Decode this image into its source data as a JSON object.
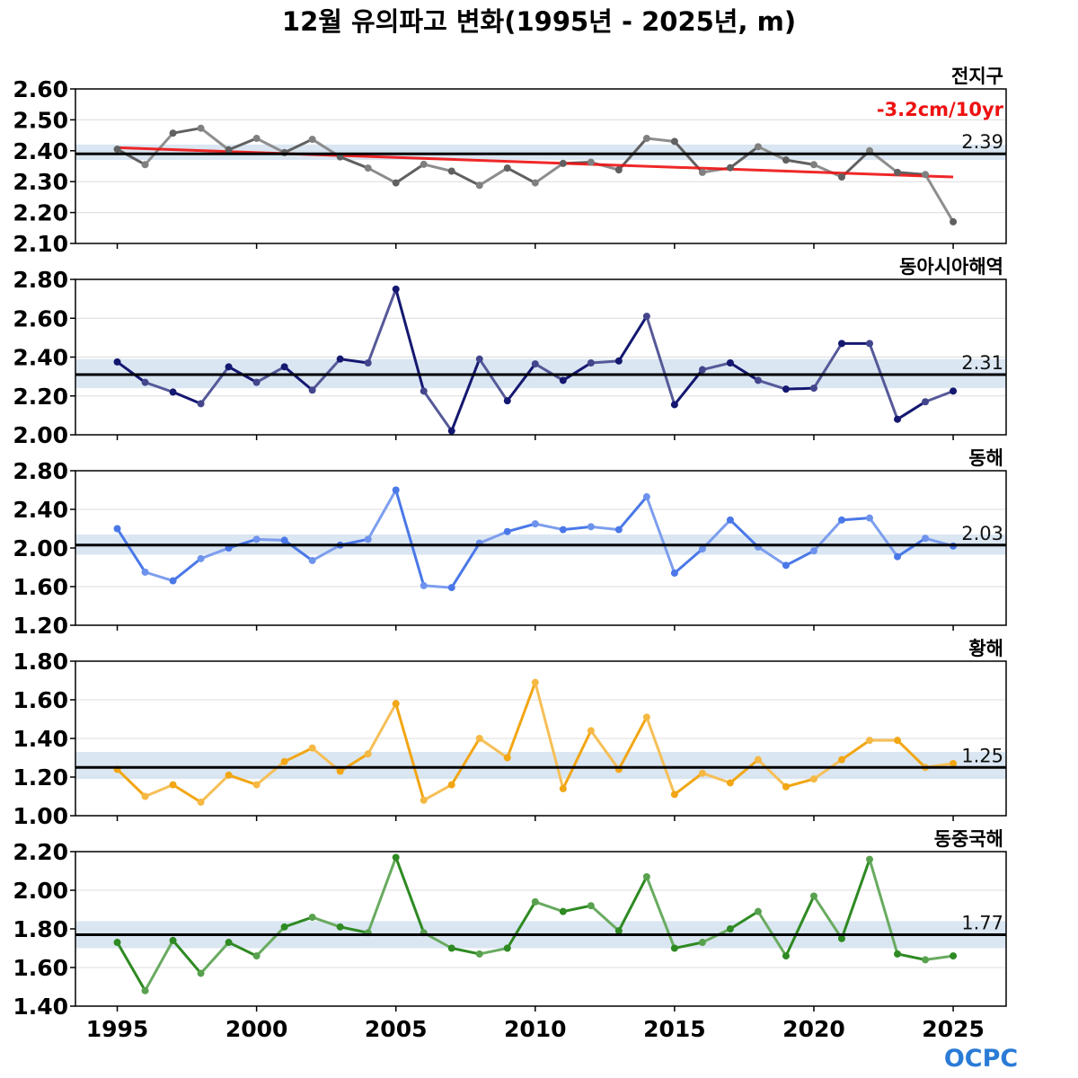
{
  "title": "12월 유의파고 변화(1995년 - 2025년, m)",
  "logo_text": "OCPC",
  "logo_color": "#2a7bd6",
  "chart_data": {
    "type": "line",
    "x": [
      1995,
      1996,
      1997,
      1998,
      1999,
      2000,
      2001,
      2002,
      2003,
      2004,
      2005,
      2006,
      2007,
      2008,
      2009,
      2010,
      2011,
      2012,
      2013,
      2014,
      2015,
      2016,
      2017,
      2018,
      2019,
      2020,
      2021,
      2022,
      2023,
      2024,
      2025
    ],
    "xticks": [
      "1995",
      "2000",
      "2005",
      "2010",
      "2015",
      "2020",
      "2025"
    ],
    "xlim": [
      1993.5,
      2026.9
    ],
    "panels": [
      {
        "name": "전지구",
        "color": "#606060",
        "ylim": [
          2.1,
          2.6
        ],
        "yticks": [
          "2.10",
          "2.20",
          "2.30",
          "2.40",
          "2.50",
          "2.60"
        ],
        "mean": 2.39,
        "mean_label": "2.39",
        "band": [
          2.37,
          2.42
        ],
        "trend_label": "-3.2cm/10yr",
        "trend_color": "#ee1111",
        "trend": {
          "x": [
            1995,
            2025
          ],
          "y": [
            2.41,
            2.315
          ]
        },
        "values": [
          2.405,
          2.355,
          2.457,
          2.473,
          2.403,
          2.44,
          2.394,
          2.437,
          2.38,
          2.344,
          2.296,
          2.356,
          2.334,
          2.288,
          2.344,
          2.296,
          2.359,
          2.363,
          2.338,
          2.44,
          2.43,
          2.33,
          2.345,
          2.413,
          2.37,
          2.355,
          2.315,
          2.4,
          2.33,
          2.323,
          2.17
        ]
      },
      {
        "name": "동아시아해역",
        "color": "#141870",
        "ylim": [
          2.0,
          2.8
        ],
        "yticks": [
          "2.00",
          "2.20",
          "2.40",
          "2.60",
          "2.80"
        ],
        "mean": 2.31,
        "mean_label": "2.31",
        "band": [
          2.24,
          2.39
        ],
        "values": [
          2.375,
          2.27,
          2.22,
          2.16,
          2.35,
          2.27,
          2.35,
          2.23,
          2.39,
          2.37,
          2.75,
          2.225,
          2.02,
          2.39,
          2.175,
          2.365,
          2.28,
          2.37,
          2.38,
          2.61,
          2.155,
          2.335,
          2.37,
          2.28,
          2.235,
          2.24,
          2.47,
          2.47,
          2.08,
          2.17,
          2.225
        ]
      },
      {
        "name": "동해",
        "color": "#4a78e8",
        "ylim": [
          1.2,
          2.8
        ],
        "yticks": [
          "1.20",
          "1.60",
          "2.00",
          "2.40",
          "2.80"
        ],
        "mean": 2.03,
        "mean_label": "2.03",
        "band": [
          1.93,
          2.14
        ],
        "values": [
          2.2,
          1.75,
          1.66,
          1.89,
          2.0,
          2.09,
          2.08,
          1.87,
          2.03,
          2.09,
          2.6,
          1.61,
          1.59,
          2.05,
          2.17,
          2.25,
          2.19,
          2.22,
          2.19,
          2.53,
          1.74,
          1.99,
          2.29,
          2.01,
          1.82,
          1.97,
          2.29,
          2.31,
          1.91,
          2.1,
          2.02
        ]
      },
      {
        "name": "황해",
        "color": "#f2a614",
        "ylim": [
          1.0,
          1.8
        ],
        "yticks": [
          "1.00",
          "1.20",
          "1.40",
          "1.60",
          "1.80"
        ],
        "mean": 1.25,
        "mean_label": "1.25",
        "band": [
          1.19,
          1.33
        ],
        "values": [
          1.24,
          1.1,
          1.16,
          1.07,
          1.21,
          1.16,
          1.28,
          1.35,
          1.23,
          1.32,
          1.58,
          1.08,
          1.16,
          1.4,
          1.3,
          1.69,
          1.14,
          1.44,
          1.24,
          1.51,
          1.11,
          1.22,
          1.17,
          1.29,
          1.15,
          1.19,
          1.29,
          1.39,
          1.39,
          1.25,
          1.27
        ]
      },
      {
        "name": "동중국해",
        "color": "#2e8a22",
        "ylim": [
          1.4,
          2.2
        ],
        "yticks": [
          "1.40",
          "1.60",
          "1.80",
          "2.00",
          "2.20"
        ],
        "mean": 1.77,
        "mean_label": "1.77",
        "band": [
          1.7,
          1.84
        ],
        "values": [
          1.73,
          1.48,
          1.74,
          1.57,
          1.73,
          1.66,
          1.81,
          1.86,
          1.81,
          1.78,
          2.17,
          1.78,
          1.7,
          1.67,
          1.7,
          1.94,
          1.89,
          1.92,
          1.79,
          2.07,
          1.7,
          1.73,
          1.8,
          1.89,
          1.66,
          1.97,
          1.75,
          2.16,
          1.67,
          1.64,
          1.66
        ]
      }
    ]
  }
}
